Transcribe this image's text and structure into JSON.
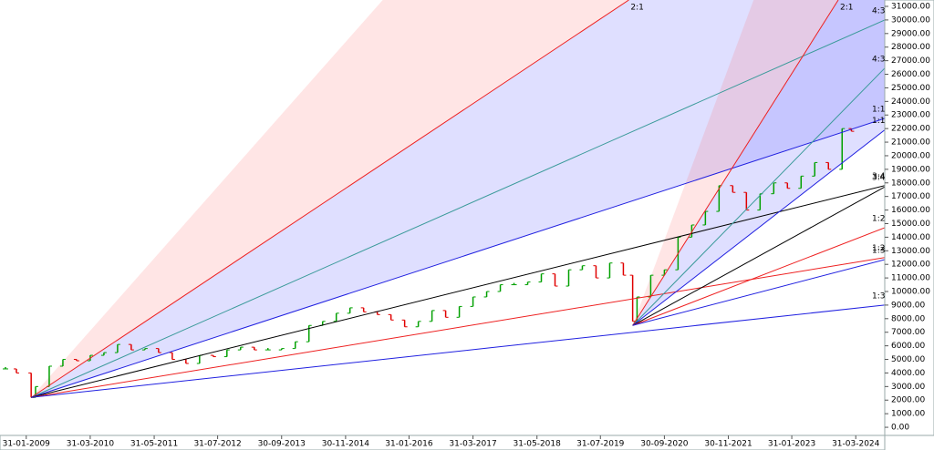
{
  "chart_data": {
    "type": "gann",
    "x": [
      2008.7,
      2008.9,
      2009.17,
      2009.25,
      2009.5,
      2009.75,
      2010.0,
      2010.25,
      2010.5,
      2010.75,
      2011.0,
      2011.25,
      2011.5,
      2011.75,
      2012.0,
      2012.25,
      2012.5,
      2012.75,
      2013.0,
      2013.25,
      2013.5,
      2013.75,
      2014.0,
      2014.25,
      2014.5,
      2014.75,
      2015.0,
      2015.25,
      2015.5,
      2015.75,
      2016.0,
      2016.25,
      2016.5,
      2016.75,
      2017.0,
      2017.25,
      2017.5,
      2017.75,
      2018.0,
      2018.25,
      2018.5,
      2018.75,
      2019.0,
      2019.25,
      2019.5,
      2019.75,
      2020.0,
      2020.17,
      2020.25,
      2020.5,
      2020.75,
      2021.0,
      2021.25,
      2021.5,
      2021.75,
      2022.0,
      2022.25,
      2022.5,
      2022.75,
      2023.0,
      2023.25,
      2023.5,
      2023.75,
      2024.0,
      2024.17
    ],
    "values": [
      4300,
      4000,
      2200,
      3000,
      4500,
      5000,
      4900,
      5300,
      5500,
      6100,
      5700,
      5800,
      5500,
      5000,
      4700,
      5300,
      5200,
      5700,
      5900,
      5700,
      5700,
      5800,
      6300,
      7500,
      7800,
      8400,
      8800,
      8500,
      8300,
      7900,
      7400,
      7800,
      8600,
      8100,
      8900,
      9600,
      10000,
      10500,
      10500,
      10700,
      11300,
      10400,
      11600,
      11900,
      11000,
      12100,
      11200,
      7800,
      9600,
      11200,
      11600,
      14000,
      14900,
      15900,
      17800,
      17300,
      16000,
      17200,
      18000,
      17600,
      18500,
      19500,
      19000,
      22000,
      21800
    ],
    "up_color": "#00a000",
    "down_color": "#e00000",
    "fans": [
      {
        "origin": {
          "x": 2009.17,
          "y": 2200
        },
        "lines": [
          {
            "label": "2:1",
            "color": "#ee2020",
            "x": 2020.1,
            "y": 31470
          },
          {
            "label": "4:3",
            "color": "#3a9a9a",
            "x": 2024.78,
            "y": 30000
          },
          {
            "label": "1:1",
            "color": "#2020e0",
            "x": 2024.78,
            "y": 22750
          },
          {
            "label": "3:4",
            "color": "#000000",
            "x": 2024.78,
            "y": 17800
          },
          {
            "label": "1:2",
            "color": "#ee2020",
            "x": 2024.78,
            "y": 12500
          },
          {
            "label": "1:3",
            "color": "#2020e0",
            "x": 2024.78,
            "y": 9000
          }
        ]
      },
      {
        "origin": {
          "x": 2020.17,
          "y": 7500
        },
        "lines": [
          {
            "label": "2:1",
            "color": "#ee2020",
            "x": 2023.93,
            "y": 31470
          },
          {
            "label": "4:3",
            "color": "#3a9a9a",
            "x": 2024.78,
            "y": 26450
          },
          {
            "label": "1:1",
            "color": "#2020e0",
            "x": 2024.78,
            "y": 21900
          },
          {
            "label": "3:4",
            "color": "#000000",
            "x": 2024.78,
            "y": 17700
          },
          {
            "label": "1:2",
            "color": "#ee2020",
            "x": 2024.78,
            "y": 14700
          },
          {
            "label": "1:3",
            "color": "#2020e0",
            "x": 2024.78,
            "y": 12350
          }
        ]
      }
    ],
    "xlim": [
      2008.6,
      2024.78
    ],
    "ylim": [
      -600,
      31470
    ],
    "xticks": [
      {
        "value": 2009.08,
        "label": "31-01-2009"
      },
      {
        "value": 2010.25,
        "label": "31-03-2010"
      },
      {
        "value": 2011.42,
        "label": "31-05-2011"
      },
      {
        "value": 2012.58,
        "label": "31-07-2012"
      },
      {
        "value": 2013.75,
        "label": "30-09-2013"
      },
      {
        "value": 2014.92,
        "label": "30-11-2014"
      },
      {
        "value": 2016.08,
        "label": "31-01-2016"
      },
      {
        "value": 2017.25,
        "label": "31-03-2017"
      },
      {
        "value": 2018.42,
        "label": "31-05-2018"
      },
      {
        "value": 2019.58,
        "label": "31-07-2019"
      },
      {
        "value": 2020.75,
        "label": "30-09-2020"
      },
      {
        "value": 2021.92,
        "label": "30-11-2021"
      },
      {
        "value": 2023.08,
        "label": "31-01-2023"
      },
      {
        "value": 2024.25,
        "label": "31-03-2024"
      }
    ],
    "yticks": [
      {
        "value": 0,
        "label": "0.00"
      },
      {
        "value": 1000,
        "label": "1000.00"
      },
      {
        "value": 2000,
        "label": "2000.00"
      },
      {
        "value": 3000,
        "label": "3000.00"
      },
      {
        "value": 4000,
        "label": "4000.00"
      },
      {
        "value": 5000,
        "label": "5000.00"
      },
      {
        "value": 6000,
        "label": "6000.00"
      },
      {
        "value": 7000,
        "label": "7000.00"
      },
      {
        "value": 8000,
        "label": "8000.00"
      },
      {
        "value": 9000,
        "label": "9000.00"
      },
      {
        "value": 10000,
        "label": "10000.00"
      },
      {
        "value": 11000,
        "label": "11000.00"
      },
      {
        "value": 12000,
        "label": "12000.00"
      },
      {
        "value": 13000,
        "label": "13000.00"
      },
      {
        "value": 14000,
        "label": "14000.00"
      },
      {
        "value": 15000,
        "label": "15000.00"
      },
      {
        "value": 16000,
        "label": "16000.00"
      },
      {
        "value": 17000,
        "label": "17000.00"
      },
      {
        "value": 18000,
        "label": "18000.00"
      },
      {
        "value": 19000,
        "label": "19000.00"
      },
      {
        "value": 20000,
        "label": "20000.00"
      },
      {
        "value": 21000,
        "label": "21000.00"
      },
      {
        "value": 22000,
        "label": "22000.00"
      },
      {
        "value": 23000,
        "label": "23000.00"
      },
      {
        "value": 24000,
        "label": "24000.00"
      },
      {
        "value": 25000,
        "label": "25000.00"
      },
      {
        "value": 26000,
        "label": "26000.00"
      },
      {
        "value": 27000,
        "label": "27000.00"
      },
      {
        "value": 28000,
        "label": "28000.00"
      },
      {
        "value": 29000,
        "label": "29000.00"
      },
      {
        "value": 30000,
        "label": "30000.00"
      },
      {
        "value": 31000,
        "label": "31000.00"
      }
    ]
  }
}
